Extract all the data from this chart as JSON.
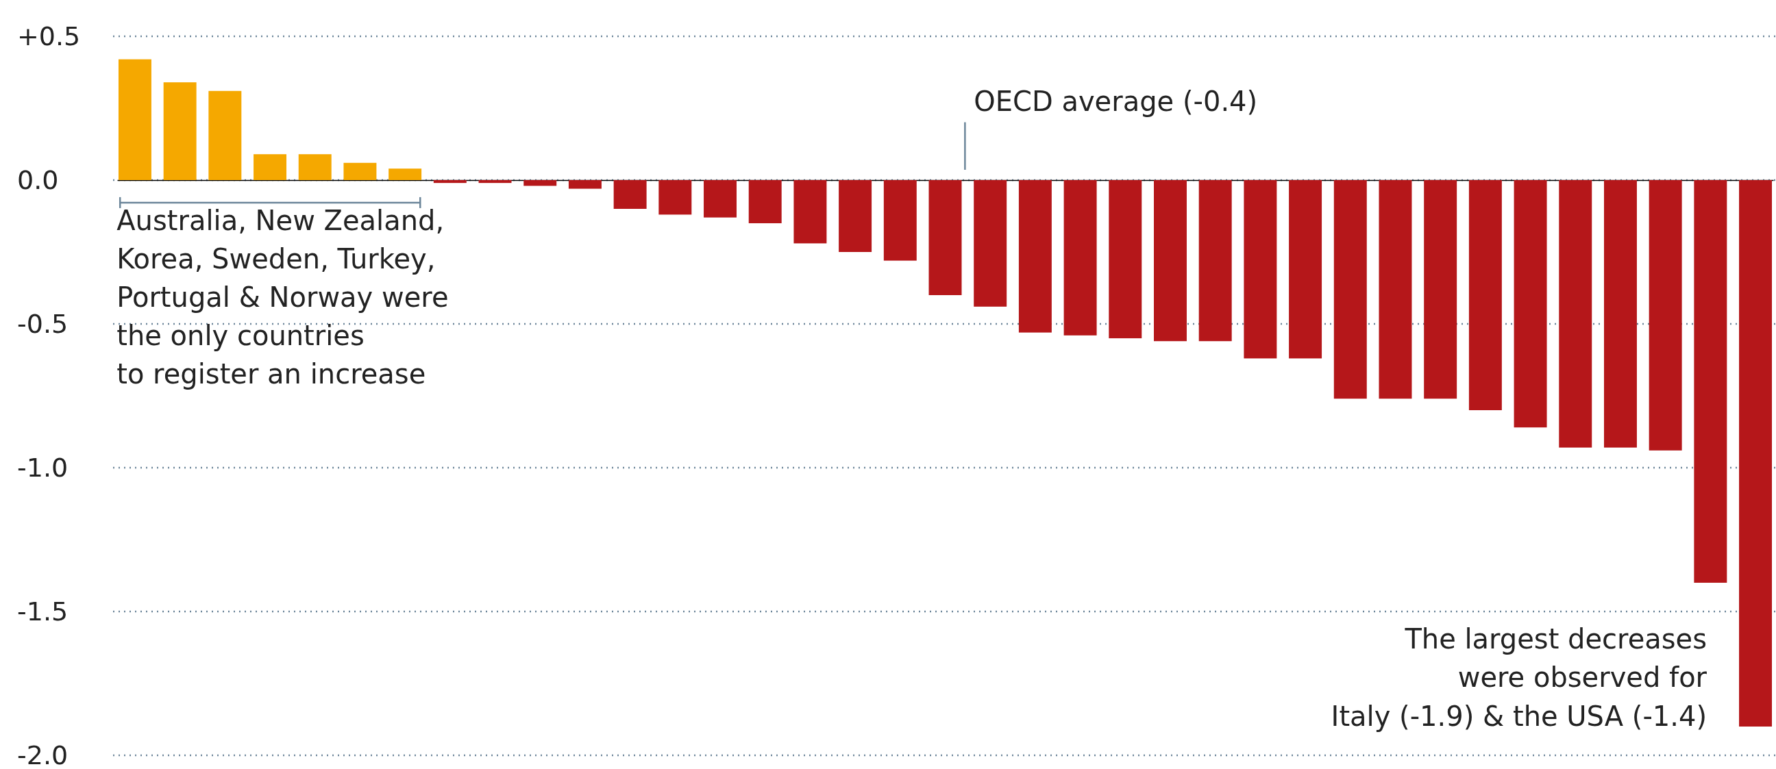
{
  "chart_data": {
    "type": "bar",
    "categories": [
      null,
      null,
      null,
      null,
      null,
      null,
      null,
      null,
      null,
      null,
      null,
      null,
      null,
      null,
      null,
      null,
      null,
      null,
      null,
      null,
      null,
      null,
      null,
      null,
      null,
      null,
      null,
      null,
      null,
      null,
      null,
      null,
      null,
      null,
      null,
      null,
      null
    ],
    "values": [
      0.42,
      0.34,
      0.31,
      0.09,
      0.09,
      0.06,
      0.04,
      -0.01,
      -0.01,
      -0.02,
      -0.03,
      -0.1,
      -0.12,
      -0.13,
      -0.15,
      -0.22,
      -0.25,
      -0.28,
      -0.4,
      -0.44,
      -0.53,
      -0.54,
      -0.55,
      -0.56,
      -0.56,
      -0.62,
      -0.62,
      -0.76,
      -0.76,
      -0.76,
      -0.8,
      -0.86,
      -0.93,
      -0.93,
      -0.94,
      -1.4,
      -1.9
    ],
    "colors": [
      "#f5a800",
      "#f5a800",
      "#f5a800",
      "#f5a800",
      "#f5a800",
      "#f5a800",
      "#f5a800",
      "#b5171a",
      "#b5171a",
      "#b5171a",
      "#b5171a",
      "#b5171a",
      "#b5171a",
      "#b5171a",
      "#b5171a",
      "#b5171a",
      "#b5171a",
      "#b5171a",
      "#b5171a",
      "#b5171a",
      "#b5171a",
      "#b5171a",
      "#b5171a",
      "#b5171a",
      "#b5171a",
      "#b5171a",
      "#b5171a",
      "#b5171a",
      "#b5171a",
      "#b5171a",
      "#b5171a",
      "#b5171a",
      "#b5171a",
      "#b5171a",
      "#b5171a",
      "#b5171a",
      "#b5171a"
    ],
    "ylim": [
      -2.0,
      0.5
    ],
    "yticks": [
      {
        "value": 0.5,
        "label": "+0.5"
      },
      {
        "value": 0,
        "label": "0.0"
      },
      {
        "value": -0.5,
        "label": "-0.5"
      },
      {
        "value": -1,
        "label": "-1.0"
      },
      {
        "value": -1.5,
        "label": "-1.5"
      },
      {
        "value": -2,
        "label": "-2.0"
      }
    ],
    "grid": "y",
    "annotations": [
      "OECD average (-0.4)",
      "Australia, New Zealand,\nKorea, Sweden, Turkey,\nPortugal & Norway were\nthe only countries\nto register an increase",
      "The largest decreases\nwere observed for\nItaly (-1.9) & the USA (-1.4)"
    ]
  }
}
